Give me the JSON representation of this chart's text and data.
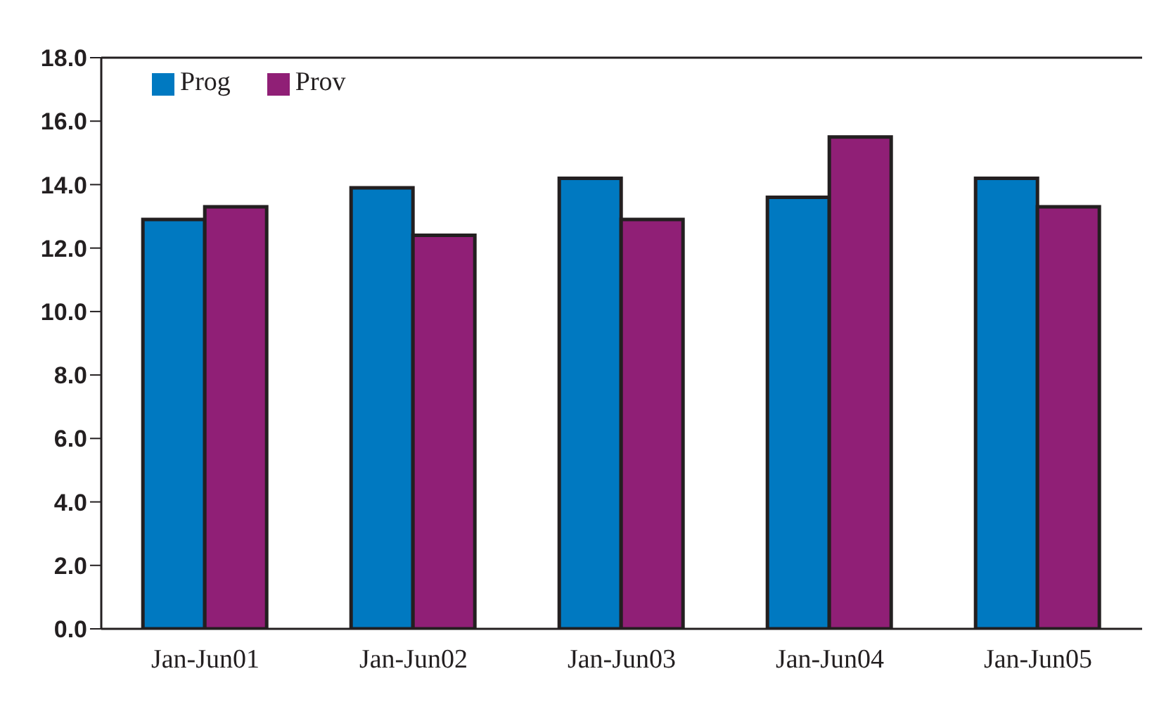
{
  "chart_data": {
    "type": "bar",
    "categories": [
      "Jan-Jun01",
      "Jan-Jun02",
      "Jan-Jun03",
      "Jan-Jun04",
      "Jan-Jun05"
    ],
    "series": [
      {
        "name": "Prog",
        "color": "#0079c1",
        "values": [
          12.9,
          13.9,
          14.2,
          13.6,
          14.2
        ]
      },
      {
        "name": "Prov",
        "color": "#901f76",
        "values": [
          13.3,
          12.4,
          12.9,
          15.5,
          13.3
        ]
      }
    ],
    "ylim": [
      0,
      18
    ],
    "yticks": [
      {
        "value": 0,
        "label": "0.0"
      },
      {
        "value": 2,
        "label": "2.0"
      },
      {
        "value": 4,
        "label": "4.0"
      },
      {
        "value": 6,
        "label": "6.0"
      },
      {
        "value": 8,
        "label": "8.0"
      },
      {
        "value": 10,
        "label": "10.0"
      },
      {
        "value": 12,
        "label": "12.0"
      },
      {
        "value": 14,
        "label": "14.0"
      },
      {
        "value": 16,
        "label": "16.0"
      },
      {
        "value": 18,
        "label": "18.0"
      }
    ],
    "grid": false,
    "legend": "top left"
  }
}
